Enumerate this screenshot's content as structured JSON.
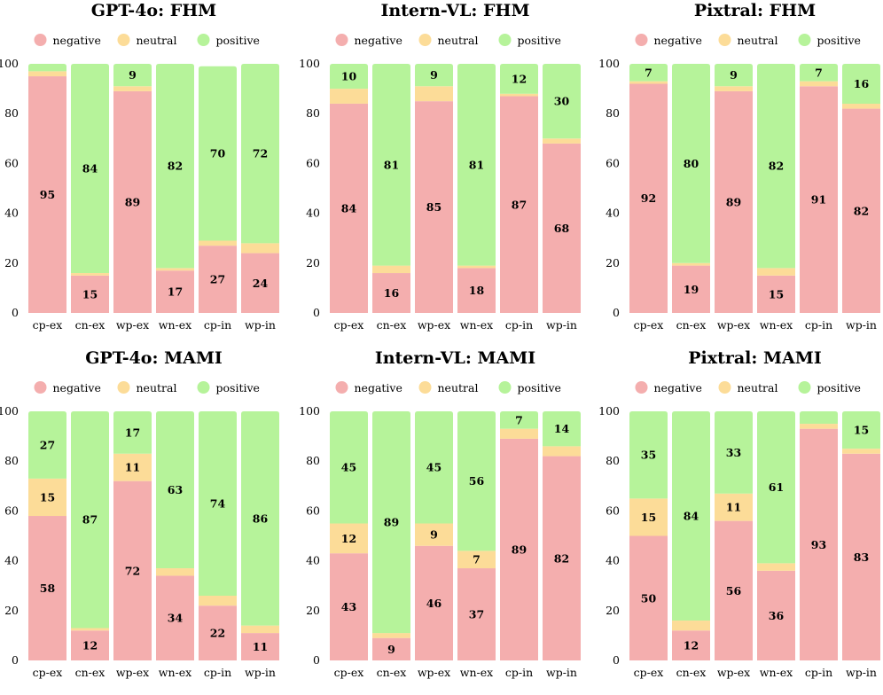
{
  "colors": {
    "negative": "#f4aeae",
    "neutral": "#fcdc98",
    "positive": "#b6f39a"
  },
  "chart_data": [
    {
      "type": "bar",
      "stacked": true,
      "title": "GPT-4o: FHM",
      "legend": [
        "negative",
        "neutral",
        "positive"
      ],
      "legend_position": "top",
      "categories": [
        "cp-ex",
        "cn-ex",
        "wp-ex",
        "wn-ex",
        "cp-in",
        "wp-in"
      ],
      "series": [
        {
          "name": "negative",
          "values": [
            95,
            15,
            89,
            17,
            27,
            24
          ]
        },
        {
          "name": "neutral",
          "values": [
            2,
            1,
            2,
            1,
            2,
            4
          ]
        },
        {
          "name": "positive",
          "values": [
            3,
            84,
            9,
            82,
            70,
            72
          ]
        }
      ],
      "labels": {
        "negative": [
          "95",
          "15",
          "89",
          "17",
          "27",
          "24"
        ],
        "neutral": [
          "",
          "",
          "",
          "",
          "",
          ""
        ],
        "positive": [
          "",
          "84",
          "9",
          "82",
          "70",
          "72"
        ]
      },
      "ylim": [
        0,
        100
      ],
      "yticks": [
        "0",
        "20",
        "40",
        "60",
        "80",
        "100"
      ]
    },
    {
      "type": "bar",
      "stacked": true,
      "title": "Intern-VL: FHM",
      "legend": [
        "negative",
        "neutral",
        "positive"
      ],
      "legend_position": "top",
      "categories": [
        "cp-ex",
        "cn-ex",
        "wp-ex",
        "wn-ex",
        "cp-in",
        "wp-in"
      ],
      "series": [
        {
          "name": "negative",
          "values": [
            84,
            16,
            85,
            18,
            87,
            68
          ]
        },
        {
          "name": "neutral",
          "values": [
            6,
            3,
            6,
            1,
            1,
            2
          ]
        },
        {
          "name": "positive",
          "values": [
            10,
            81,
            9,
            81,
            12,
            30
          ]
        }
      ],
      "labels": {
        "negative": [
          "84",
          "16",
          "85",
          "18",
          "87",
          "68"
        ],
        "neutral": [
          "",
          "",
          "",
          "",
          "",
          ""
        ],
        "positive": [
          "10",
          "81",
          "9",
          "81",
          "12",
          "30"
        ]
      },
      "ylim": [
        0,
        100
      ],
      "yticks": [
        "0",
        "20",
        "40",
        "60",
        "80",
        "100"
      ]
    },
    {
      "type": "bar",
      "stacked": true,
      "title": "Pixtral: FHM",
      "legend": [
        "negative",
        "neutral",
        "positive"
      ],
      "legend_position": "top",
      "categories": [
        "cp-ex",
        "cn-ex",
        "wp-ex",
        "wn-ex",
        "cp-in",
        "wp-in"
      ],
      "series": [
        {
          "name": "negative",
          "values": [
            92,
            19,
            89,
            15,
            91,
            82
          ]
        },
        {
          "name": "neutral",
          "values": [
            1,
            1,
            2,
            3,
            2,
            2
          ]
        },
        {
          "name": "positive",
          "values": [
            7,
            80,
            9,
            82,
            7,
            16
          ]
        }
      ],
      "labels": {
        "negative": [
          "92",
          "19",
          "89",
          "15",
          "91",
          "82"
        ],
        "neutral": [
          "",
          "",
          "",
          "",
          "",
          ""
        ],
        "positive": [
          "7",
          "80",
          "9",
          "82",
          "7",
          "16"
        ]
      },
      "ylim": [
        0,
        100
      ],
      "yticks": [
        "0",
        "20",
        "40",
        "60",
        "80",
        "100"
      ]
    },
    {
      "type": "bar",
      "stacked": true,
      "title": "GPT-4o: MAMI",
      "legend": [
        "negative",
        "neutral",
        "positive"
      ],
      "legend_position": "top",
      "categories": [
        "cp-ex",
        "cn-ex",
        "wp-ex",
        "wn-ex",
        "cp-in",
        "wp-in"
      ],
      "series": [
        {
          "name": "negative",
          "values": [
            58,
            12,
            72,
            34,
            22,
            11
          ]
        },
        {
          "name": "neutral",
          "values": [
            15,
            1,
            11,
            3,
            4,
            3
          ]
        },
        {
          "name": "positive",
          "values": [
            27,
            87,
            17,
            63,
            74,
            86
          ]
        }
      ],
      "labels": {
        "negative": [
          "58",
          "12",
          "72",
          "34",
          "22",
          "11"
        ],
        "neutral": [
          "15",
          "",
          "11",
          "",
          "",
          ""
        ],
        "positive": [
          "27",
          "87",
          "17",
          "63",
          "74",
          "86"
        ]
      },
      "ylim": [
        0,
        100
      ],
      "yticks": [
        "0",
        "20",
        "40",
        "60",
        "80",
        "100"
      ]
    },
    {
      "type": "bar",
      "stacked": true,
      "title": "Intern-VL: MAMI",
      "legend": [
        "negative",
        "neutral",
        "positive"
      ],
      "legend_position": "top",
      "categories": [
        "cp-ex",
        "cn-ex",
        "wp-ex",
        "wn-ex",
        "cp-in",
        "wp-in"
      ],
      "series": [
        {
          "name": "negative",
          "values": [
            43,
            9,
            46,
            37,
            89,
            82
          ]
        },
        {
          "name": "neutral",
          "values": [
            12,
            2,
            9,
            7,
            4,
            4
          ]
        },
        {
          "name": "positive",
          "values": [
            45,
            89,
            45,
            56,
            7,
            14
          ]
        }
      ],
      "labels": {
        "negative": [
          "43",
          "9",
          "46",
          "37",
          "89",
          "82"
        ],
        "neutral": [
          "12",
          "",
          "9",
          "7",
          "",
          ""
        ],
        "positive": [
          "45",
          "89",
          "45",
          "56",
          "7",
          "14"
        ]
      },
      "ylim": [
        0,
        100
      ],
      "yticks": [
        "0",
        "20",
        "40",
        "60",
        "80",
        "100"
      ]
    },
    {
      "type": "bar",
      "stacked": true,
      "title": "Pixtral: MAMI",
      "legend": [
        "negative",
        "neutral",
        "positive"
      ],
      "legend_position": "top",
      "categories": [
        "cp-ex",
        "cn-ex",
        "wp-ex",
        "wn-ex",
        "cp-in",
        "wp-in"
      ],
      "series": [
        {
          "name": "negative",
          "values": [
            50,
            12,
            56,
            36,
            93,
            83
          ]
        },
        {
          "name": "neutral",
          "values": [
            15,
            4,
            11,
            3,
            2,
            2
          ]
        },
        {
          "name": "positive",
          "values": [
            35,
            84,
            33,
            61,
            5,
            15
          ]
        }
      ],
      "labels": {
        "negative": [
          "50",
          "12",
          "56",
          "36",
          "93",
          "83"
        ],
        "neutral": [
          "15",
          "",
          "11",
          "",
          "",
          ""
        ],
        "positive": [
          "35",
          "84",
          "33",
          "61",
          "",
          "15"
        ]
      },
      "ylim": [
        0,
        100
      ],
      "yticks": [
        "0",
        "20",
        "40",
        "60",
        "80",
        "100"
      ]
    }
  ]
}
